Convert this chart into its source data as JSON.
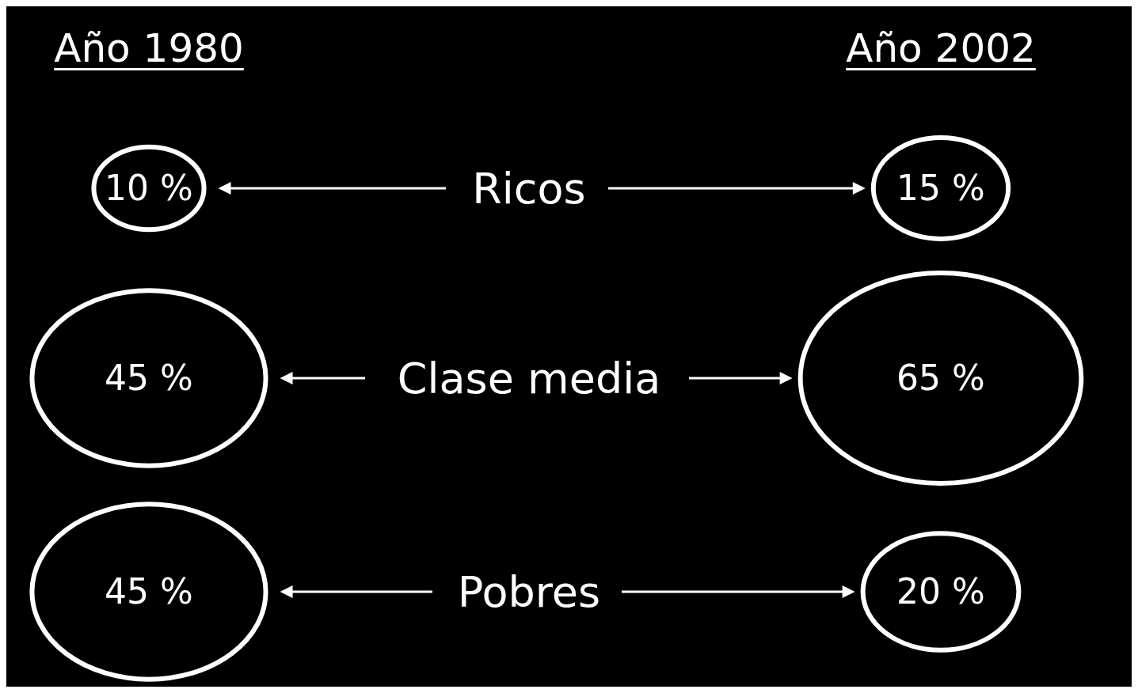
{
  "chart_data": {
    "type": "other",
    "categories": [
      "Ricos",
      "Clase media",
      "Pobres"
    ],
    "series": [
      {
        "name": "Año 1980",
        "color": "#ffffff",
        "values": [
          10,
          45,
          45
        ],
        "value_labels": [
          "10 %",
          "45 %",
          "45 %"
        ]
      },
      {
        "name": "Año 2002",
        "color": "#ffffff",
        "values": [
          15,
          65,
          20
        ],
        "value_labels": [
          "15 %",
          "65 %",
          "20 %"
        ]
      }
    ]
  }
}
